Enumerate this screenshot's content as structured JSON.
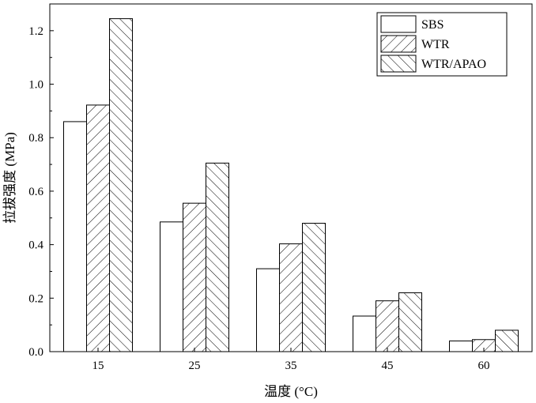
{
  "chart_data": {
    "type": "bar",
    "xlabel": "温度 (°C)",
    "ylabel": "拉拔强度 (MPa)",
    "categories": [
      "15",
      "25",
      "35",
      "45",
      "60"
    ],
    "series": [
      {
        "name": "SBS",
        "values": [
          0.86,
          0.485,
          0.31,
          0.133,
          0.04
        ],
        "pattern": "none"
      },
      {
        "name": "WTR",
        "values": [
          0.922,
          0.555,
          0.403,
          0.19,
          0.045
        ],
        "pattern": "forward-hatch"
      },
      {
        "name": "WTR/APAO",
        "values": [
          1.245,
          0.705,
          0.48,
          0.22,
          0.08
        ],
        "pattern": "back-hatch"
      }
    ],
    "yticks": [
      "0.0",
      "0.2",
      "0.4",
      "0.6",
      "0.8",
      "1.0",
      "1.2"
    ],
    "ylim": [
      0,
      1.3
    ],
    "grid": false,
    "legend_position": "top-right"
  }
}
